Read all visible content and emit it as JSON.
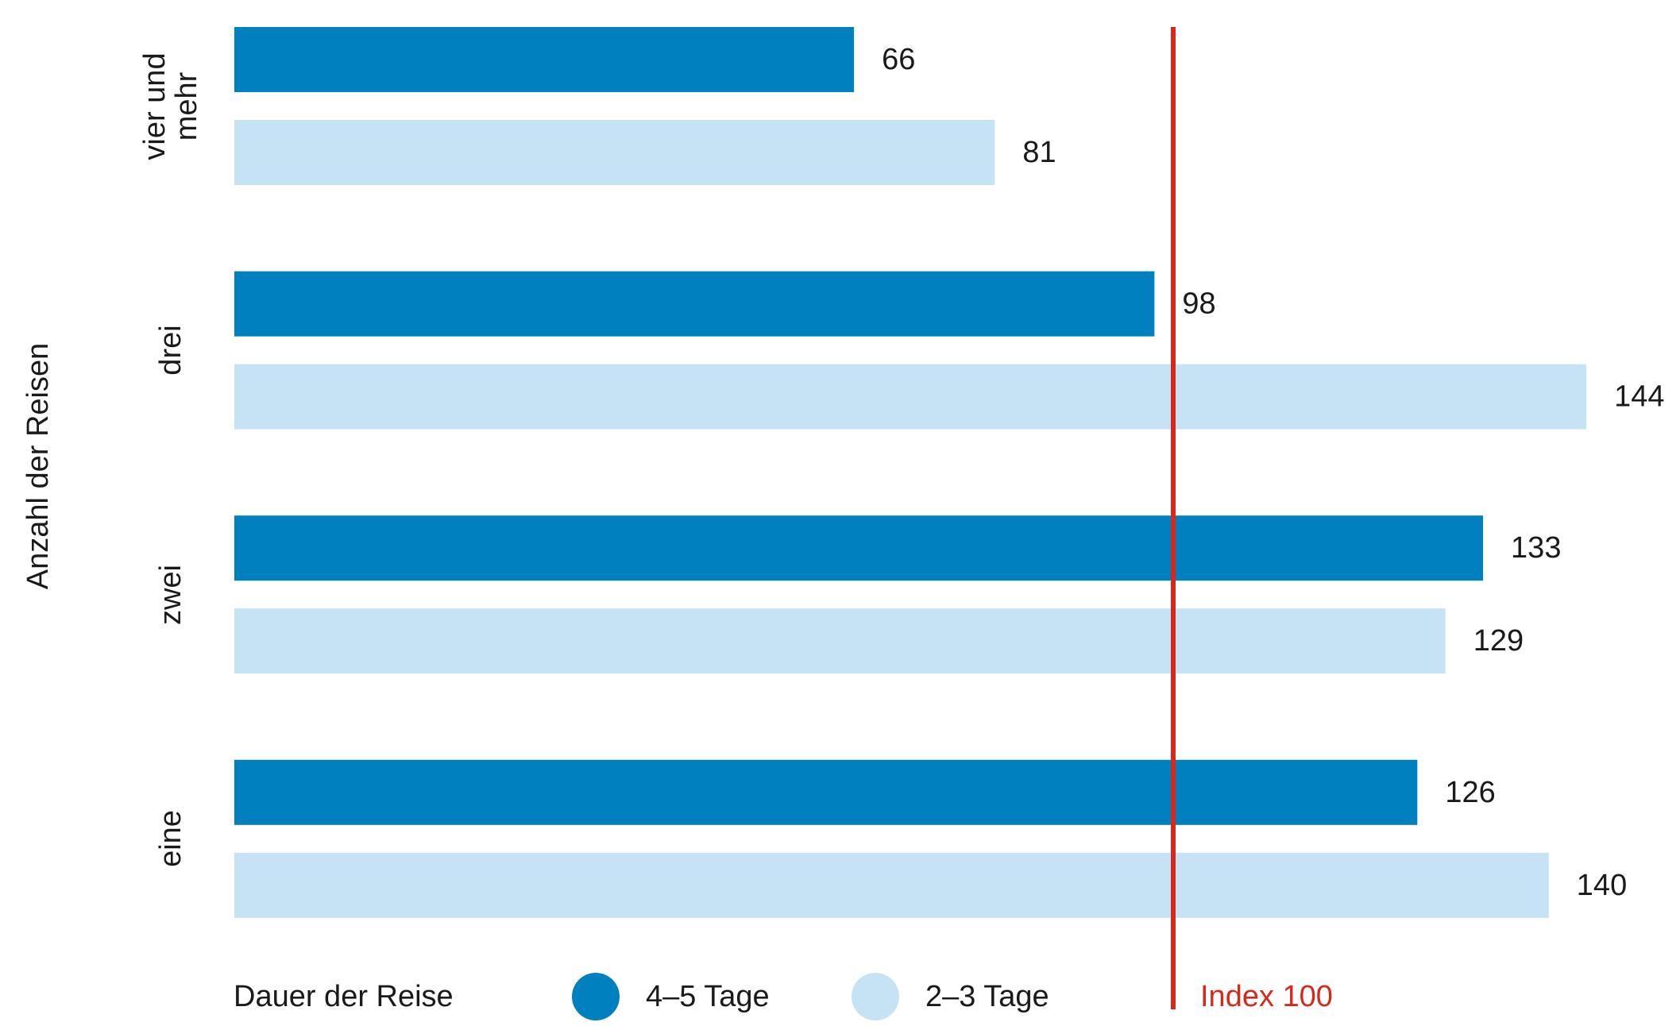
{
  "chart_data": {
    "type": "bar",
    "orientation": "horizontal",
    "y_axis_label": "Anzahl der Reisen",
    "categories": [
      "vier und mehr",
      "drei",
      "zwei",
      "eine"
    ],
    "legend_title": "Dauer der Reise",
    "series": [
      {
        "name": "4–5 Tage",
        "color": "#0080bf",
        "values": [
          66,
          98,
          133,
          126
        ]
      },
      {
        "name": "2–3 Tage",
        "color": "#c5e3f5",
        "values": [
          81,
          144,
          129,
          140
        ]
      }
    ],
    "reference_line": {
      "value": 100,
      "label": "Index 100",
      "color": "#d42a1e"
    }
  }
}
